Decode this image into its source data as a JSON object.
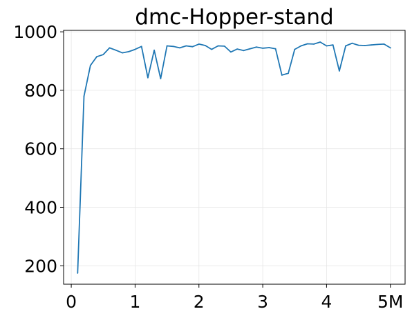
{
  "chart_data": {
    "type": "line",
    "title": "dmc-Hopper-stand",
    "xlabel": "",
    "ylabel": "",
    "xlim": [
      -0.12,
      5.23
    ],
    "ylim": [
      137,
      1005
    ],
    "grid": true,
    "legend": "none",
    "x_ticks": [
      {
        "value": 0,
        "label": "0"
      },
      {
        "value": 1,
        "label": "1"
      },
      {
        "value": 2,
        "label": "2"
      },
      {
        "value": 3,
        "label": "3"
      },
      {
        "value": 4,
        "label": "4"
      },
      {
        "value": 5,
        "label": "5M"
      }
    ],
    "y_ticks": [
      {
        "value": 200,
        "label": "200"
      },
      {
        "value": 400,
        "label": "400"
      },
      {
        "value": 600,
        "label": "600"
      },
      {
        "value": 800,
        "label": "800"
      },
      {
        "value": 1000,
        "label": "1000"
      }
    ],
    "series": [
      {
        "color": "#1f77b4",
        "x": [
          0.1,
          0.2,
          0.3,
          0.4,
          0.5,
          0.6,
          0.7,
          0.8,
          0.9,
          1.0,
          1.1,
          1.2,
          1.3,
          1.4,
          1.5,
          1.6,
          1.7,
          1.8,
          1.9,
          2.0,
          2.1,
          2.2,
          2.3,
          2.4,
          2.5,
          2.6,
          2.7,
          2.8,
          2.9,
          3.0,
          3.1,
          3.2,
          3.3,
          3.4,
          3.5,
          3.6,
          3.7,
          3.8,
          3.9,
          4.0,
          4.1,
          4.2,
          4.3,
          4.4,
          4.5,
          4.6,
          4.7,
          4.8,
          4.9,
          5.0
        ],
        "values": [
          175,
          780,
          885,
          915,
          922,
          945,
          937,
          928,
          932,
          940,
          950,
          843,
          937,
          840,
          952,
          950,
          945,
          952,
          949,
          958,
          953,
          940,
          952,
          951,
          931,
          941,
          936,
          942,
          948,
          944,
          946,
          942,
          852,
          858,
          940,
          952,
          959,
          958,
          965,
          952,
          955,
          866,
          952,
          961,
          954,
          953,
          955,
          957,
          958,
          945
        ]
      }
    ]
  }
}
